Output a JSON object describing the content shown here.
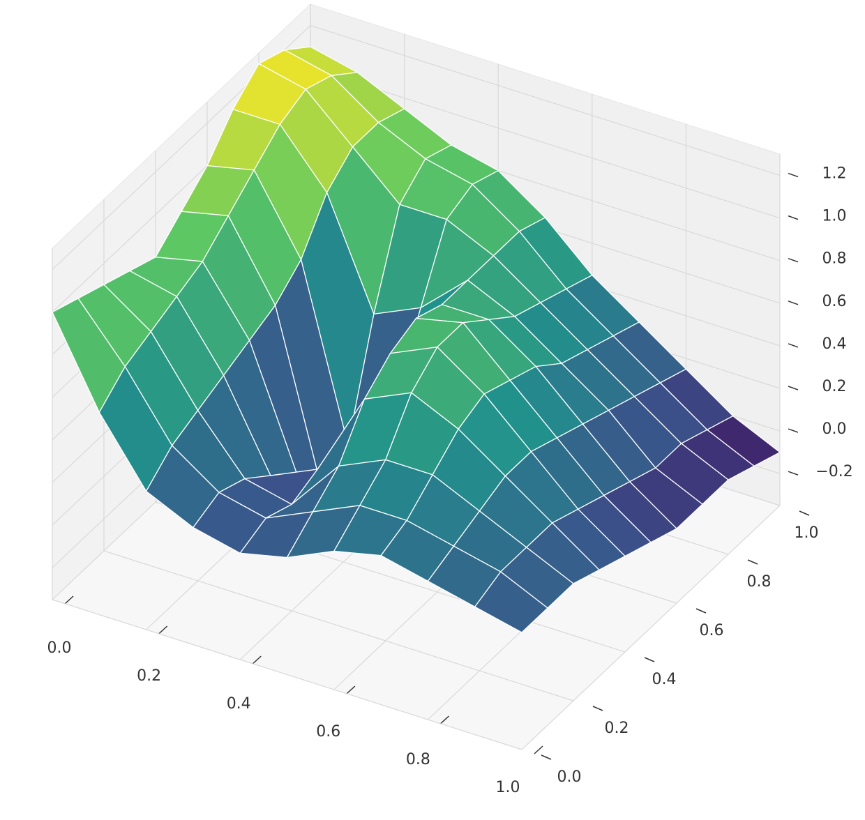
{
  "chart_data": {
    "type": "surface",
    "x": [
      0,
      0.1,
      0.2,
      0.3,
      0.4,
      0.5,
      0.6,
      0.7,
      0.8,
      0.9,
      1
    ],
    "y": [
      0,
      0.1,
      0.2,
      0.3,
      0.4,
      0.5,
      0.6,
      0.7,
      0.8,
      0.9,
      1
    ],
    "z": [
      [
        1.0,
        0.6,
        0.3,
        0.2,
        0.15,
        0.2,
        0.3,
        0.35,
        0.3,
        0.25,
        0.2
      ],
      [
        0.95,
        0.7,
        0.4,
        0.25,
        0.2,
        0.3,
        0.4,
        0.4,
        0.35,
        0.3,
        0.2
      ],
      [
        0.9,
        0.75,
        0.45,
        0.2,
        0.15,
        0.4,
        0.5,
        0.5,
        0.4,
        0.3,
        0.2
      ],
      [
        0.85,
        0.8,
        0.5,
        0.1,
        0.2,
        0.6,
        0.7,
        0.6,
        0.45,
        0.3,
        0.15
      ],
      [
        0.8,
        0.85,
        0.55,
        0.0,
        0.1,
        0.7,
        0.8,
        0.65,
        0.45,
        0.25,
        0.1
      ],
      [
        0.9,
        0.95,
        0.6,
        -0.2,
        0.0,
        0.75,
        0.8,
        0.6,
        0.4,
        0.2,
        0.05
      ],
      [
        1.0,
        1.05,
        0.7,
        -0.1,
        0.2,
        0.7,
        0.7,
        0.55,
        0.35,
        0.15,
        0.0
      ],
      [
        1.15,
        1.15,
        0.9,
        0.4,
        0.5,
        0.7,
        0.6,
        0.45,
        0.3,
        0.1,
        0.0
      ],
      [
        1.25,
        1.2,
        1.0,
        0.8,
        0.8,
        0.7,
        0.55,
        0.4,
        0.25,
        0.1,
        0.0
      ],
      [
        1.2,
        1.15,
        1.0,
        0.9,
        0.85,
        0.7,
        0.5,
        0.35,
        0.2,
        0.05,
        -0.05
      ],
      [
        1.1,
        1.05,
        0.95,
        0.85,
        0.8,
        0.65,
        0.45,
        0.3,
        0.15,
        0.0,
        -0.1
      ]
    ],
    "colormap": "viridis",
    "xlim": [
      0,
      1
    ],
    "ylim": [
      0,
      1
    ],
    "zlim": [
      -0.35,
      1.3
    ],
    "xticks": [
      {
        "value": 0,
        "label": "0.0"
      },
      0.2,
      0.4,
      0.6,
      0.8,
      {
        "value": 1,
        "label": "1.0"
      }
    ],
    "yticks": [
      {
        "value": 0,
        "label": "0.0"
      },
      0.2,
      0.4,
      0.6,
      0.8,
      {
        "value": 1,
        "label": "1.0"
      }
    ],
    "zticks": [
      {
        "value": -0.2,
        "label": "−0.2"
      },
      {
        "value": 0,
        "label": "0.0"
      },
      0.2,
      0.4,
      0.6,
      0.8,
      {
        "value": 1,
        "label": "1.0"
      },
      1.2
    ],
    "grid": true
  }
}
